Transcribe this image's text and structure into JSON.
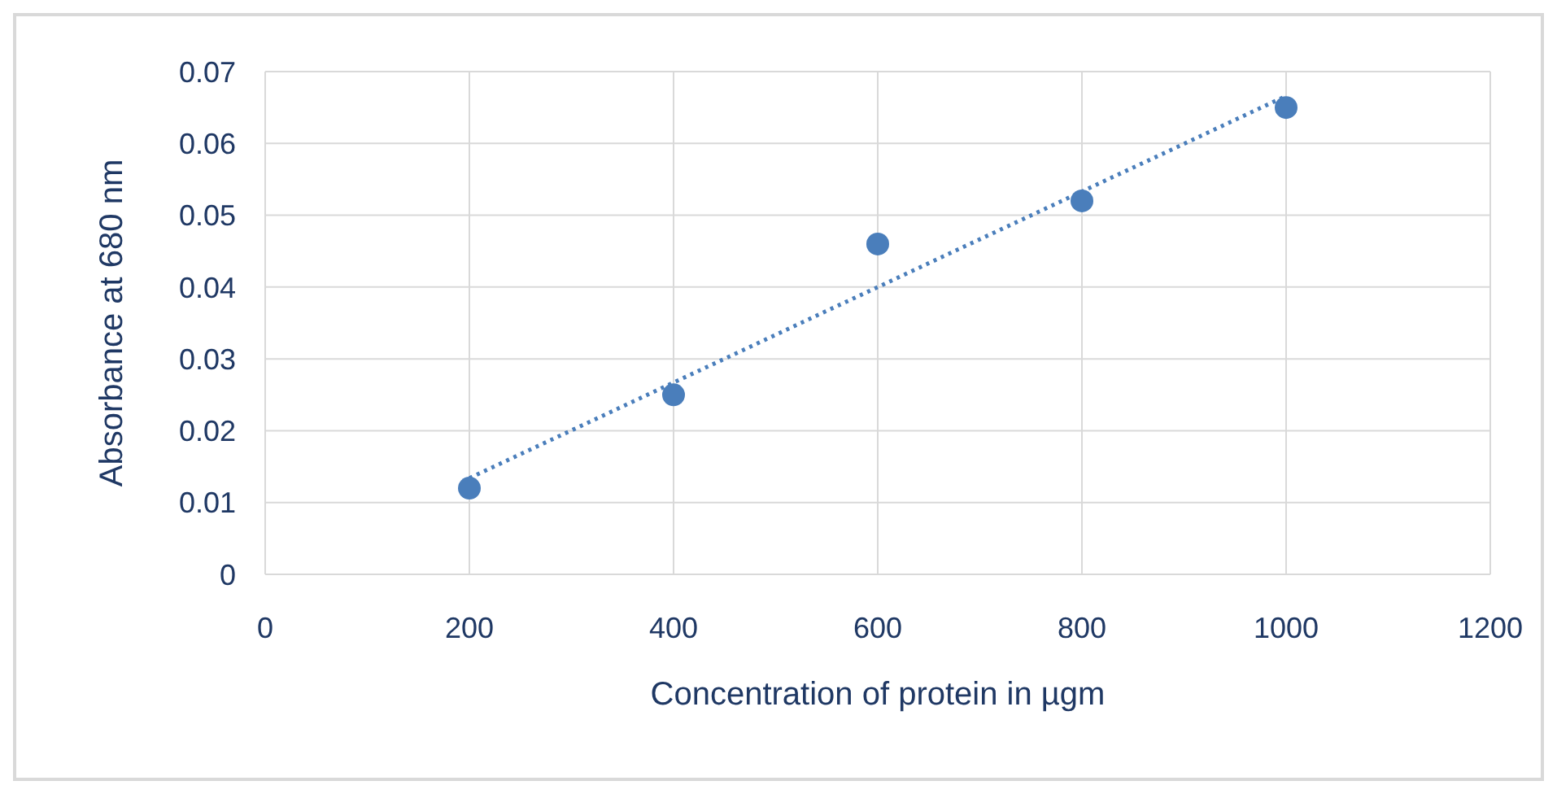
{
  "chart_data": {
    "type": "scatter",
    "xlabel": "Concentration of protein in µgm",
    "ylabel": "Absorbance at 680 nm",
    "x": [
      200,
      400,
      600,
      800,
      1000
    ],
    "series": [
      {
        "color": "#4a7ebb",
        "values": [
          0.012,
          0.025,
          0.046,
          0.052,
          0.065
        ],
        "marker": "circle"
      },
      {
        "type": "line",
        "color": "#4a7ebb",
        "x": [
          200,
          1000
        ],
        "values": [
          0.0134,
          0.0666
        ],
        "line_style": "dotted",
        "marker": "none"
      }
    ],
    "xlim": [
      0,
      1200
    ],
    "xticks": [
      0,
      200,
      400,
      600,
      800,
      1000,
      1200
    ],
    "ylim": [
      0,
      0.07
    ],
    "yticks": [
      0,
      0.01,
      0.02,
      0.03,
      0.04,
      0.05,
      0.06,
      0.07
    ],
    "grid": true,
    "legend": false
  }
}
